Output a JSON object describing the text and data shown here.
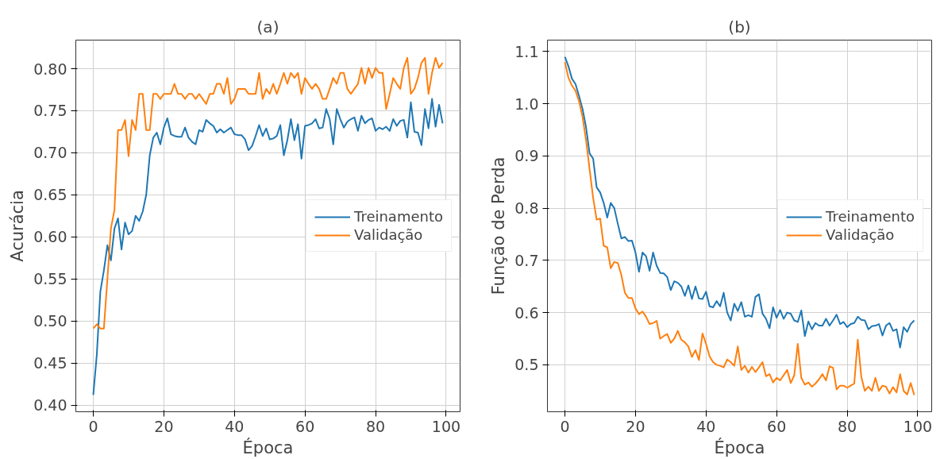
{
  "chart_data": [
    {
      "type": "line",
      "title": "(a)",
      "xlabel": "Época",
      "ylabel": "Acurácia",
      "grid": true,
      "legend": "right",
      "marker": "none",
      "line_style": "solid",
      "xlim": [
        -4.95,
        103.95
      ],
      "xticks": [
        0,
        20,
        40,
        60,
        80,
        100
      ],
      "ylim": [
        0.392,
        0.834
      ],
      "yticks": [
        {
          "value": 0.4,
          "label": "0.40"
        },
        {
          "value": 0.45,
          "label": "0.45"
        },
        {
          "value": 0.5,
          "label": "0.50"
        },
        {
          "value": 0.55,
          "label": "0.55"
        },
        {
          "value": 0.6,
          "label": "0.60"
        },
        {
          "value": 0.65,
          "label": "0.65"
        },
        {
          "value": 0.7,
          "label": "0.70"
        },
        {
          "value": 0.75,
          "label": "0.75"
        },
        {
          "value": 0.8,
          "label": "0.80"
        }
      ],
      "x": [
        0,
        1,
        2,
        3,
        4,
        5,
        6,
        7,
        8,
        9,
        10,
        11,
        12,
        13,
        14,
        15,
        16,
        17,
        18,
        19,
        20,
        21,
        22,
        23,
        24,
        25,
        26,
        27,
        28,
        29,
        30,
        31,
        32,
        33,
        34,
        35,
        36,
        37,
        38,
        39,
        40,
        41,
        42,
        43,
        44,
        45,
        46,
        47,
        48,
        49,
        50,
        51,
        52,
        53,
        54,
        55,
        56,
        57,
        58,
        59,
        60,
        61,
        62,
        63,
        64,
        65,
        66,
        67,
        68,
        69,
        70,
        71,
        72,
        73,
        74,
        75,
        76,
        77,
        78,
        79,
        80,
        81,
        82,
        83,
        84,
        85,
        86,
        87,
        88,
        89,
        90,
        91,
        92,
        93,
        94,
        95,
        96,
        97,
        98,
        99
      ],
      "series": [
        {
          "name": "Treinamento",
          "color": "#1f77b4",
          "values": [
            0.412,
            0.46,
            0.535,
            0.56,
            0.59,
            0.572,
            0.61,
            0.622,
            0.585,
            0.617,
            0.603,
            0.607,
            0.625,
            0.619,
            0.63,
            0.65,
            0.697,
            0.718,
            0.724,
            0.71,
            0.73,
            0.741,
            0.722,
            0.72,
            0.719,
            0.719,
            0.73,
            0.718,
            0.713,
            0.71,
            0.727,
            0.725,
            0.739,
            0.735,
            0.732,
            0.724,
            0.728,
            0.724,
            0.727,
            0.73,
            0.722,
            0.721,
            0.721,
            0.716,
            0.703,
            0.708,
            0.72,
            0.733,
            0.72,
            0.729,
            0.716,
            0.717,
            0.72,
            0.733,
            0.697,
            0.715,
            0.74,
            0.715,
            0.734,
            0.693,
            0.732,
            0.733,
            0.735,
            0.74,
            0.729,
            0.73,
            0.752,
            0.74,
            0.71,
            0.752,
            0.74,
            0.73,
            0.737,
            0.74,
            0.742,
            0.726,
            0.744,
            0.735,
            0.739,
            0.741,
            0.726,
            0.73,
            0.728,
            0.731,
            0.726,
            0.74,
            0.732,
            0.738,
            0.739,
            0.718,
            0.76,
            0.725,
            0.724,
            0.709,
            0.752,
            0.729,
            0.764,
            0.731,
            0.757,
            0.735
          ]
        },
        {
          "name": "Validação",
          "color": "#ff7f0e",
          "values": [
            0.491,
            0.496,
            0.491,
            0.491,
            0.55,
            0.61,
            0.632,
            0.727,
            0.727,
            0.739,
            0.696,
            0.739,
            0.727,
            0.77,
            0.77,
            0.727,
            0.727,
            0.77,
            0.77,
            0.764,
            0.77,
            0.77,
            0.77,
            0.782,
            0.77,
            0.77,
            0.764,
            0.77,
            0.77,
            0.764,
            0.77,
            0.764,
            0.758,
            0.77,
            0.77,
            0.782,
            0.782,
            0.77,
            0.789,
            0.758,
            0.764,
            0.776,
            0.776,
            0.776,
            0.77,
            0.77,
            0.77,
            0.795,
            0.764,
            0.776,
            0.77,
            0.782,
            0.77,
            0.782,
            0.795,
            0.782,
            0.795,
            0.789,
            0.795,
            0.77,
            0.789,
            0.782,
            0.776,
            0.782,
            0.776,
            0.764,
            0.764,
            0.776,
            0.789,
            0.782,
            0.795,
            0.795,
            0.776,
            0.77,
            0.776,
            0.782,
            0.801,
            0.782,
            0.801,
            0.789,
            0.801,
            0.795,
            0.795,
            0.752,
            0.77,
            0.789,
            0.782,
            0.776,
            0.801,
            0.813,
            0.77,
            0.776,
            0.789,
            0.807,
            0.813,
            0.77,
            0.795,
            0.813,
            0.801,
            0.807
          ]
        }
      ]
    },
    {
      "type": "line",
      "title": "(b)",
      "xlabel": "Época",
      "ylabel": "Função de Perda",
      "grid": true,
      "legend": "right",
      "marker": "none",
      "line_style": "solid",
      "xlim": [
        -4.95,
        103.95
      ],
      "xticks": [
        0,
        20,
        40,
        60,
        80,
        100
      ],
      "ylim": [
        0.41,
        1.122
      ],
      "yticks": [
        0.5,
        0.6,
        0.7,
        0.8,
        0.9,
        {
          "value": 1.0,
          "label": "1.0"
        },
        1.1
      ],
      "x": [
        0,
        1,
        2,
        3,
        4,
        5,
        6,
        7,
        8,
        9,
        10,
        11,
        12,
        13,
        14,
        15,
        16,
        17,
        18,
        19,
        20,
        21,
        22,
        23,
        24,
        25,
        26,
        27,
        28,
        29,
        30,
        31,
        32,
        33,
        34,
        35,
        36,
        37,
        38,
        39,
        40,
        41,
        42,
        43,
        44,
        45,
        46,
        47,
        48,
        49,
        50,
        51,
        52,
        53,
        54,
        55,
        56,
        57,
        58,
        59,
        60,
        61,
        62,
        63,
        64,
        65,
        66,
        67,
        68,
        69,
        70,
        71,
        72,
        73,
        74,
        75,
        76,
        77,
        78,
        79,
        80,
        81,
        82,
        83,
        84,
        85,
        86,
        87,
        88,
        89,
        90,
        91,
        92,
        93,
        94,
        95,
        96,
        97,
        98,
        99
      ],
      "series": [
        {
          "name": "Treinamento",
          "color": "#1f77b4",
          "values": [
            1.09,
            1.072,
            1.048,
            1.038,
            1.015,
            0.99,
            0.955,
            0.905,
            0.895,
            0.84,
            0.83,
            0.81,
            0.782,
            0.81,
            0.8,
            0.77,
            0.742,
            0.745,
            0.737,
            0.738,
            0.715,
            0.678,
            0.715,
            0.708,
            0.68,
            0.715,
            0.69,
            0.676,
            0.675,
            0.668,
            0.643,
            0.66,
            0.657,
            0.65,
            0.632,
            0.652,
            0.626,
            0.65,
            0.627,
            0.626,
            0.64,
            0.612,
            0.61,
            0.622,
            0.612,
            0.638,
            0.6,
            0.585,
            0.617,
            0.603,
            0.62,
            0.592,
            0.595,
            0.592,
            0.63,
            0.635,
            0.598,
            0.588,
            0.57,
            0.61,
            0.59,
            0.605,
            0.588,
            0.6,
            0.598,
            0.585,
            0.582,
            0.604,
            0.555,
            0.583,
            0.568,
            0.58,
            0.575,
            0.575,
            0.588,
            0.575,
            0.585,
            0.596,
            0.578,
            0.582,
            0.572,
            0.578,
            0.58,
            0.592,
            0.586,
            0.585,
            0.568,
            0.574,
            0.575,
            0.578,
            0.556,
            0.575,
            0.58,
            0.565,
            0.568,
            0.533,
            0.572,
            0.563,
            0.578,
            0.585
          ]
        },
        {
          "name": "Validação",
          "color": "#ff7f0e",
          "values": [
            1.08,
            1.05,
            1.035,
            1.025,
            1.005,
            0.975,
            0.93,
            0.875,
            0.82,
            0.778,
            0.78,
            0.728,
            0.725,
            0.685,
            0.697,
            0.695,
            0.672,
            0.638,
            0.628,
            0.628,
            0.608,
            0.597,
            0.602,
            0.592,
            0.578,
            0.58,
            0.584,
            0.55,
            0.555,
            0.559,
            0.542,
            0.55,
            0.565,
            0.548,
            0.543,
            0.535,
            0.515,
            0.528,
            0.509,
            0.56,
            0.54,
            0.516,
            0.505,
            0.5,
            0.498,
            0.495,
            0.51,
            0.505,
            0.498,
            0.535,
            0.49,
            0.498,
            0.485,
            0.496,
            0.486,
            0.495,
            0.505,
            0.478,
            0.482,
            0.466,
            0.475,
            0.47,
            0.48,
            0.49,
            0.465,
            0.48,
            0.54,
            0.475,
            0.462,
            0.466,
            0.458,
            0.464,
            0.472,
            0.482,
            0.47,
            0.497,
            0.494,
            0.453,
            0.46,
            0.46,
            0.456,
            0.46,
            0.464,
            0.548,
            0.477,
            0.45,
            0.458,
            0.45,
            0.475,
            0.45,
            0.46,
            0.458,
            0.445,
            0.457,
            0.447,
            0.482,
            0.45,
            0.443,
            0.465,
            0.442
          ]
        }
      ]
    }
  ]
}
